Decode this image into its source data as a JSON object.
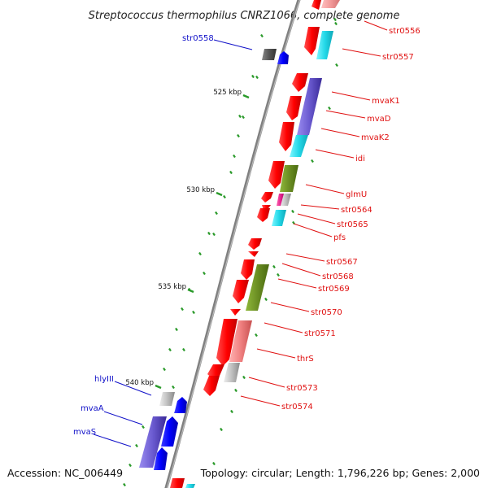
{
  "title": "Streptococcus thermophilus CNRZ1066, complete genome",
  "footer": {
    "accession": "Accession: NC_006449",
    "topology": "Topology: circular; Length: 1,796,226 bp; Genes: 2,000"
  },
  "scale_labels": [
    "525 kbp",
    "530 kbp",
    "535 kbp",
    "540 kbp"
  ],
  "genes_right": [
    "str0556",
    "str0557",
    "mvaK1",
    "mvaD",
    "mvaK2",
    "idi",
    "glmU",
    "str0564",
    "str0565",
    "pfs",
    "str0567",
    "str0568",
    "str0569",
    "str0570",
    "str0571",
    "thrS",
    "str0573",
    "str0574"
  ],
  "genes_left": [
    "str0558",
    "hlyIII",
    "mvaA",
    "mvaS"
  ],
  "colors": {
    "forward_strand_gene": "#ff0000",
    "reverse_strand_gene": "#0000ff",
    "backbone": "#808080",
    "label_forward": "#e01010",
    "label_reverse": "#1010c8",
    "tick": "#2a9a2a",
    "cog_cyan": "#22d8e8",
    "cog_purple": "#6a5ad0",
    "cog_olive": "#6b8e23",
    "cog_pink": "#f08080",
    "cog_magenta": "#e0208a",
    "cog_gray": "#c0c0c0",
    "cog_dark": "#555555"
  }
}
